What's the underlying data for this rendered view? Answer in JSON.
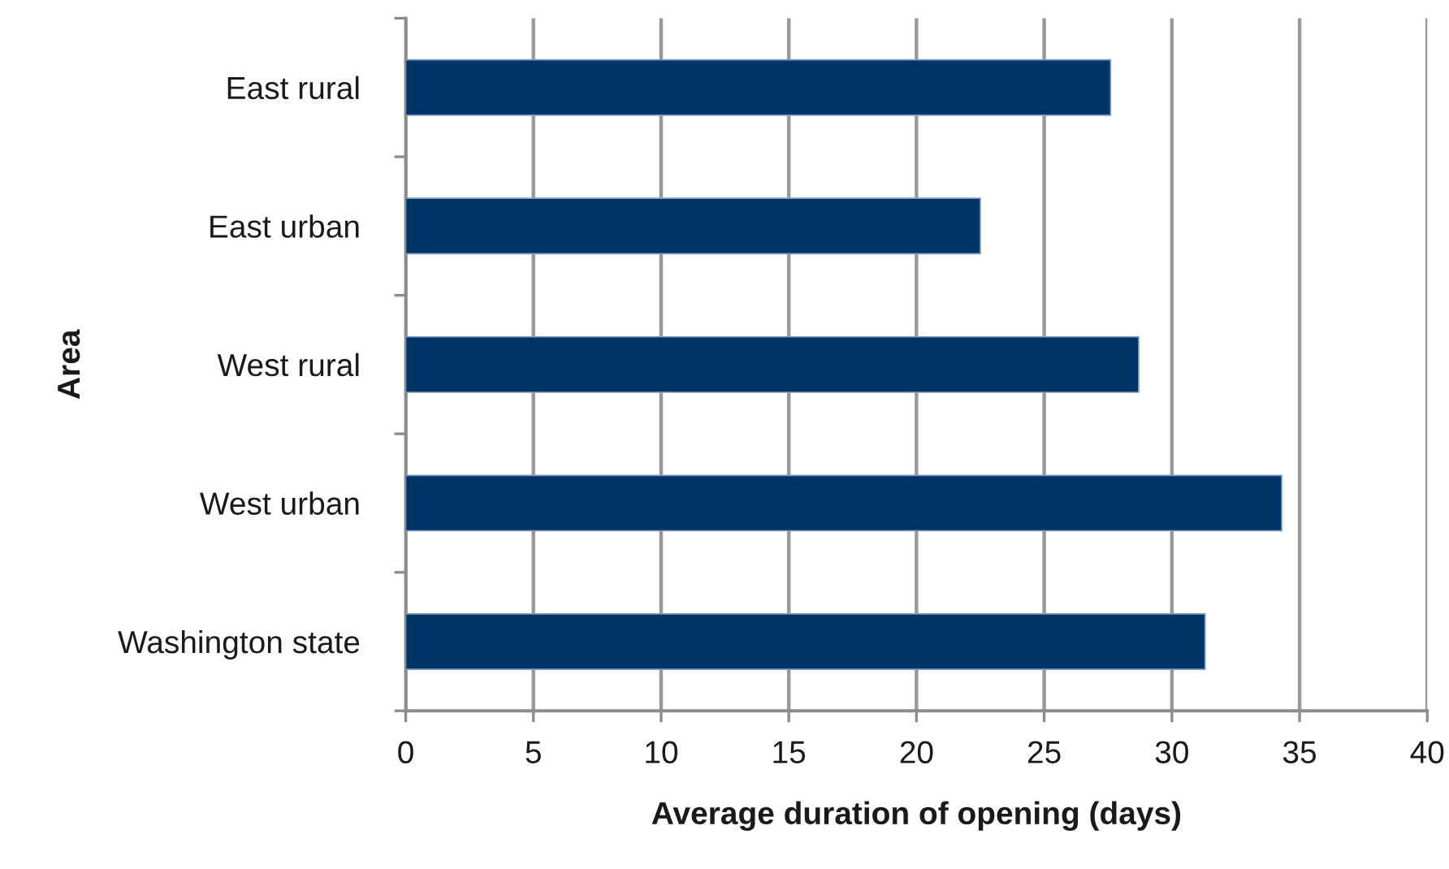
{
  "chart_data": {
    "type": "bar",
    "orientation": "horizontal",
    "xlabel": "Average duration of opening (days)",
    "ylabel": "Area",
    "categories": [
      "East rural",
      "East urban",
      "West rural",
      "West urban",
      "Washington state"
    ],
    "values": [
      27.6,
      22.5,
      28.7,
      34.3,
      31.3
    ],
    "color": "#003366",
    "xlim": [
      0,
      40
    ],
    "xticks": [
      0,
      5,
      10,
      15,
      20,
      25,
      30,
      35,
      40
    ],
    "grid": "x"
  }
}
